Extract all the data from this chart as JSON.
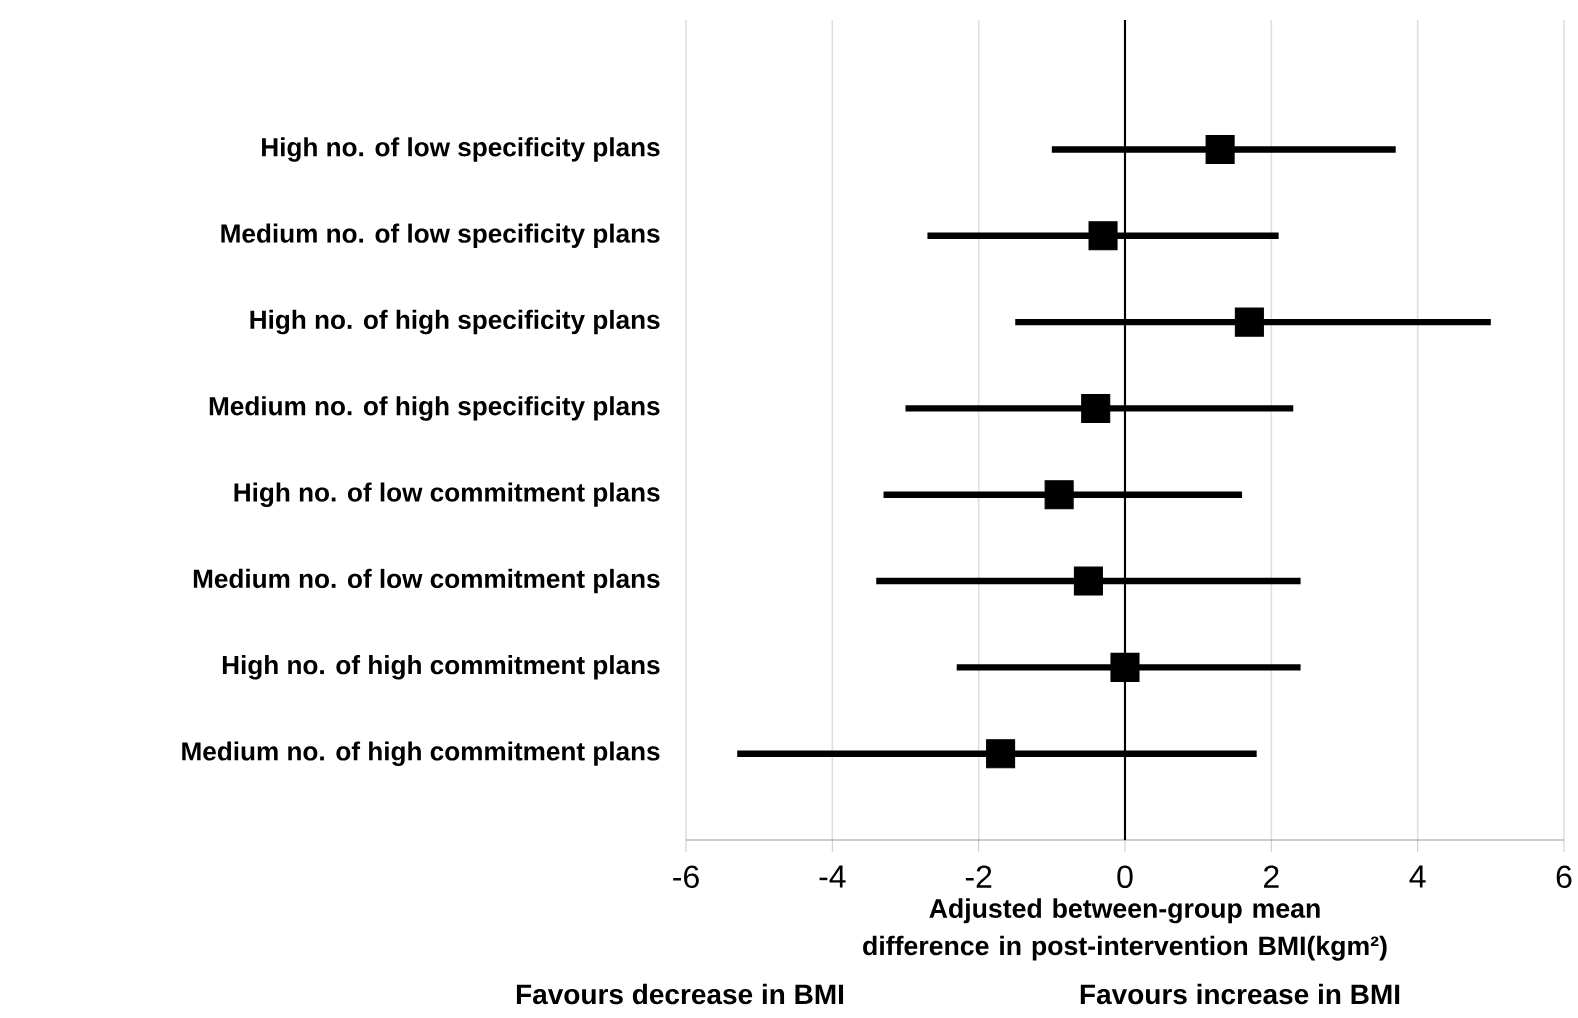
{
  "chart_data": {
    "type": "scatter",
    "orientation": "horizontal",
    "marker": "square",
    "color": "#000000",
    "categories": [
      "High no. of low specificity plans",
      "Medium no. of low specificity plans",
      "High no. of high specificity plans",
      "Medium no. of high specificity plans",
      "High no. of low commitment plans",
      "Medium no. of low commitment plans",
      "High no. of high commitment plans",
      "Medium no. of high commitment plans"
    ],
    "values": [
      1.3,
      -0.3,
      1.7,
      -0.4,
      -0.9,
      -0.5,
      0,
      -1.7
    ],
    "errors": [
      [
        -1.0,
        3.7
      ],
      [
        -2.7,
        2.1
      ],
      [
        -1.5,
        5.0
      ],
      [
        -3.0,
        2.3
      ],
      [
        -3.3,
        1.6
      ],
      [
        -3.4,
        2.4
      ],
      [
        -2.3,
        2.4
      ],
      [
        -5.3,
        1.8
      ]
    ],
    "xlim": [
      -6,
      6
    ],
    "xticks": [
      -6,
      -4,
      -2,
      0,
      2,
      4,
      6
    ],
    "grid": "x",
    "ref_lines": [
      {
        "axis": "x",
        "value": 0,
        "color": "#000000"
      }
    ],
    "xlabel": "Adjusted between-group mean difference in  post-intervention BMI(kgm²)",
    "annotations": [
      "Favours decrease in BMI",
      "Favours increase in BMI"
    ]
  }
}
